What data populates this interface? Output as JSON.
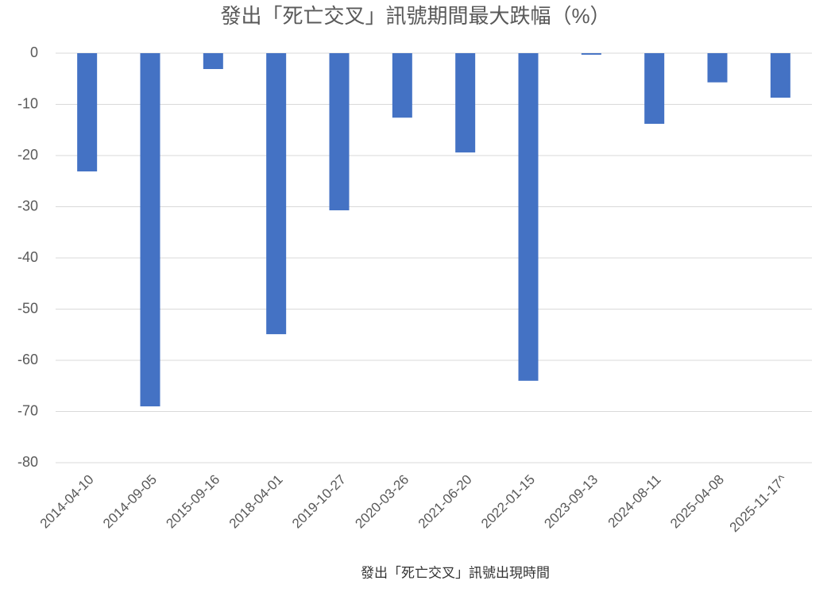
{
  "chart_data": {
    "type": "bar",
    "title": "發出「死亡交叉」訊號期間最大跌幅（%）",
    "x_label": "發出「死亡交叉」訊號出現時間",
    "categories": [
      "2014-04-10",
      "2014-09-05",
      "2015-09-16",
      "2018-04-01",
      "2019-10-27",
      "2020-03-26",
      "2021-06-20",
      "2022-01-15",
      "2023-09-13",
      "2024-08-11",
      "2025-04-08",
      "2025-11-17^"
    ],
    "values": [
      -23.1,
      -69,
      -3.1,
      -54.9,
      -30.7,
      -12.6,
      -19.4,
      -64,
      -0.3,
      -13.8,
      -5.7,
      -8.7
    ],
    "color": "#4472c4",
    "ylim": [
      -80,
      0
    ],
    "yticks": [
      0,
      -10,
      -20,
      -30,
      -40,
      -50,
      -60,
      -70,
      -80
    ],
    "grid": true
  }
}
